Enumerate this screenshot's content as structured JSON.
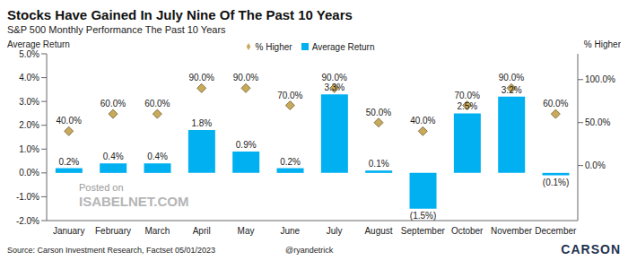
{
  "chart_data": {
    "type": "bar",
    "title": "Stocks Have Gained In July Nine Of The Past 10 Years",
    "subtitle": "S&P 500 Monthly Performance The Past 10 Years",
    "y_label": "Average Return",
    "y2_label": "% Higher",
    "categories": [
      "January",
      "February",
      "March",
      "April",
      "May",
      "June",
      "July",
      "August",
      "September",
      "October",
      "November",
      "December"
    ],
    "series": [
      {
        "name": "Average Return",
        "type": "bar",
        "color": "#00b0f0",
        "axis": "y",
        "values": [
          0.2,
          0.4,
          0.4,
          1.8,
          0.9,
          0.2,
          3.3,
          0.1,
          -1.5,
          2.5,
          3.2,
          -0.1
        ],
        "value_labels": [
          "0.2%",
          "0.4%",
          "0.4%",
          "1.8%",
          "0.9%",
          "0.2%",
          "3.3%",
          "0.1%",
          "(1.5%)",
          "2.5%",
          "3.2%",
          "(0.1%)"
        ]
      },
      {
        "name": "% Higher",
        "type": "scatter",
        "marker": "diamond",
        "color": "#c9aa5b",
        "axis": "y2",
        "values": [
          40,
          60,
          60,
          90,
          90,
          70,
          90,
          50,
          40,
          70,
          90,
          60
        ],
        "value_labels": [
          "40.0%",
          "60.0%",
          "60.0%",
          "90.0%",
          "90.0%",
          "70.0%",
          "90.0%",
          "50.0%",
          "40.0%",
          "70.0%",
          "90.0%",
          "60.0%"
        ]
      }
    ],
    "ylim": [
      -2,
      5
    ],
    "yticks": [
      {
        "value": -2,
        "label": "-2.0%"
      },
      {
        "value": -1,
        "label": "-1.0%"
      },
      {
        "value": 0,
        "label": "0.0%"
      },
      {
        "value": 1,
        "label": "1.0%"
      },
      {
        "value": 2,
        "label": "2.0%"
      },
      {
        "value": 3,
        "label": "3.0%"
      },
      {
        "value": 4,
        "label": "4.0%"
      },
      {
        "value": 5,
        "label": "5.0%"
      }
    ],
    "y2lim": [
      -64,
      130
    ],
    "y2ticks": [
      {
        "value": 0,
        "label": "0.0%"
      },
      {
        "value": 50,
        "label": "50.0%"
      },
      {
        "value": 100,
        "label": "100.0%"
      }
    ],
    "grid": false,
    "legend": "top",
    "data_labels": true,
    "source": "Source: Carson Investment Research, Factset 05/01/2023",
    "annotations": [
      "Posted on",
      "ISABELNET.COM",
      "@ryandetrick",
      "CARSON"
    ]
  }
}
